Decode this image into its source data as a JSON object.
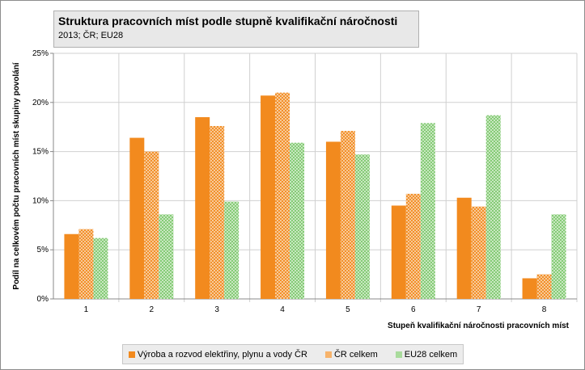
{
  "chart_data": {
    "type": "bar",
    "title": "Struktura pracovních míst podle stupně kvalifikační náročnosti",
    "subtitle": "2013; ČR; EU28",
    "xlabel": "Stupeň kvalifikační náročnosti pracovních míst",
    "ylabel": "Podíl na celkovém počtu pracovních míst skupiny povolání",
    "ylim": [
      0,
      25
    ],
    "yticks": [
      "0%",
      "5%",
      "10%",
      "15%",
      "20%",
      "25%"
    ],
    "categories": [
      "1",
      "2",
      "3",
      "4",
      "5",
      "6",
      "7",
      "8"
    ],
    "series": [
      {
        "name": "Výroba a rozvod elektřiny, plynu a vody ČR",
        "color": "#f28a1e",
        "values": [
          6.6,
          16.4,
          18.5,
          20.7,
          16.0,
          9.5,
          10.3,
          2.1
        ]
      },
      {
        "name": "ČR celkem",
        "color": "#f28a1e",
        "pattern": "check",
        "values": [
          7.1,
          15.0,
          17.6,
          21.0,
          17.1,
          10.7,
          9.4,
          2.5
        ]
      },
      {
        "name": "EU28 celkem",
        "color": "#7ec86e",
        "pattern": "check",
        "values": [
          6.2,
          8.6,
          9.9,
          15.9,
          14.7,
          17.9,
          18.7,
          8.6
        ]
      }
    ],
    "legend": "bottom",
    "grid": true
  }
}
